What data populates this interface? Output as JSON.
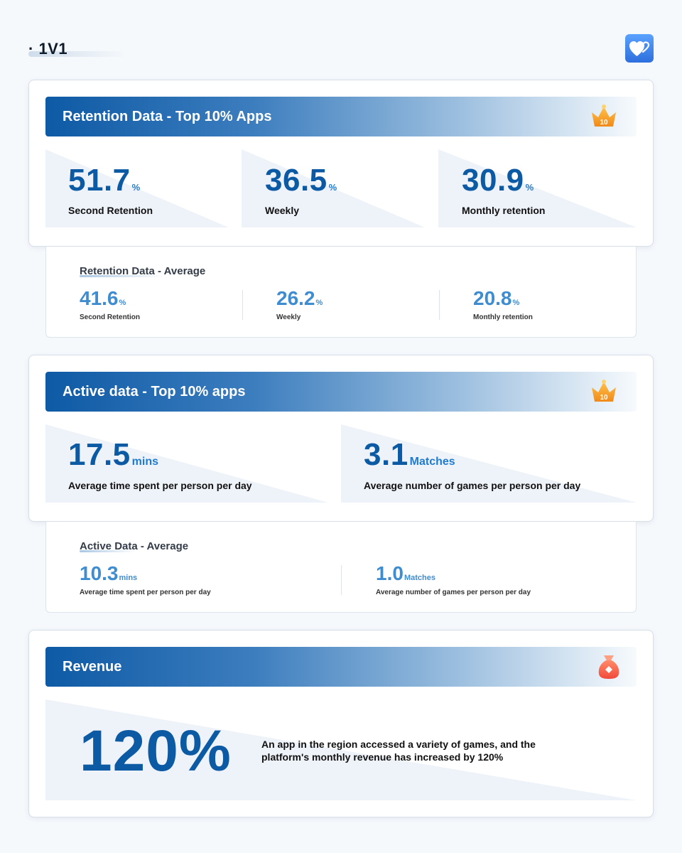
{
  "header": {
    "title": "· 1V1",
    "logo_icon": "hearts-icon",
    "accent_color": "#0c5aa4"
  },
  "retention_top": {
    "title": "Retention Data - Top 10% Apps",
    "badge_icon": "crown-top10-icon",
    "badge_text": "10",
    "stats": [
      {
        "value": "51.7",
        "unit": "%",
        "label": "Second Retention"
      },
      {
        "value": "36.5",
        "unit": "%",
        "label": "Weekly"
      },
      {
        "value": "30.9",
        "unit": "%",
        "label": "Monthly retention"
      }
    ]
  },
  "retention_avg": {
    "title": "Retention Data - Average",
    "stats": [
      {
        "value": "41.6",
        "unit": "%",
        "label": "Second Retention"
      },
      {
        "value": "26.2",
        "unit": "%",
        "label": "Weekly"
      },
      {
        "value": "20.8",
        "unit": "%",
        "label": "Monthly retention"
      }
    ]
  },
  "active_top": {
    "title": "Active data - Top 10% apps",
    "badge_icon": "crown-top10-icon",
    "badge_text": "10",
    "stats": [
      {
        "value": "17.5",
        "unit": "mins",
        "label": "Average time spent per person per day"
      },
      {
        "value": "3.1",
        "unit": "Matches",
        "label": "Average number of games per person per day"
      }
    ]
  },
  "active_avg": {
    "title": "Active Data - Average",
    "stats": [
      {
        "value": "10.3",
        "unit": "mins",
        "label": "Average time spent per person per day"
      },
      {
        "value": "1.0",
        "unit": "Matches",
        "label": "Average number of games per person per day"
      }
    ]
  },
  "revenue": {
    "title": "Revenue",
    "badge_icon": "money-bag-icon",
    "value": "120%",
    "description": "An app in the region accessed a variety of games, and the platform's monthly revenue has increased by 120%"
  }
}
